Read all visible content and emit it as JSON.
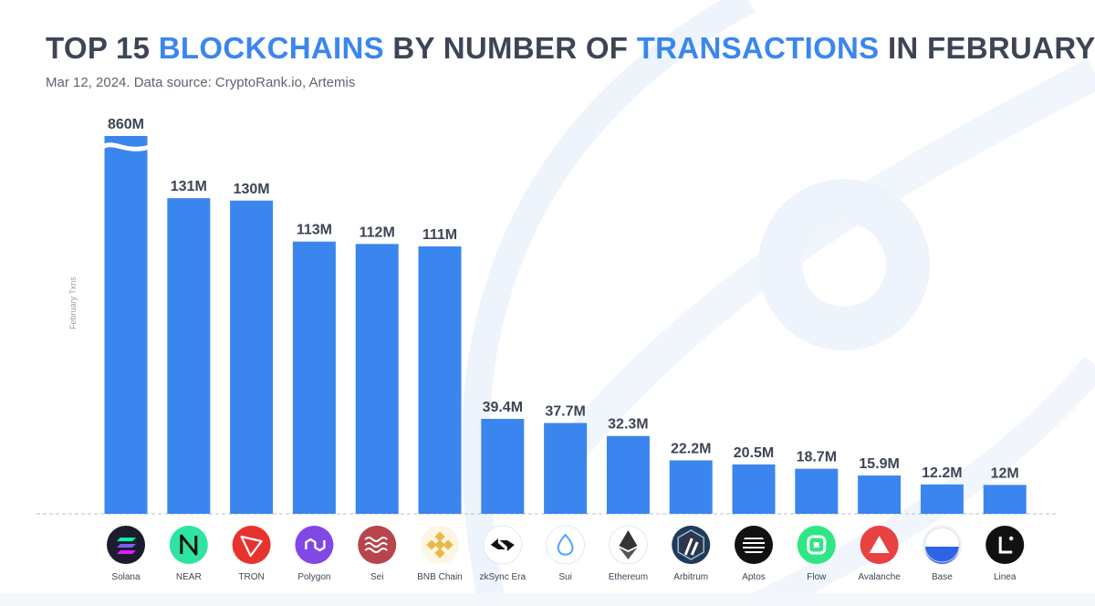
{
  "header": {
    "title_parts": [
      "TOP 15 ",
      "BLOCKCHAINS",
      " BY NUMBER OF ",
      "TRANSACTIONS",
      " IN FEBRUARY"
    ],
    "subtitle": "Mar 12, 2024. Data source: CryptoRank.io, Artemis"
  },
  "colors": {
    "bar": "#3b86ee",
    "title_highlight": "#3b86ee",
    "text": "#3d4555"
  },
  "chart_data": {
    "type": "bar",
    "title": "TOP 15 BLOCKCHAINS BY NUMBER OF TRANSACTIONS IN FEBRUARY",
    "xlabel": "",
    "ylabel": "February Txns",
    "unit": "M",
    "axis_break": "Solana",
    "grid": false,
    "legend": "none",
    "categories": [
      "Solana",
      "NEAR",
      "TRON",
      "Polygon",
      "Sei",
      "BNB Chain",
      "zkSync Era",
      "Sui",
      "Ethereum",
      "Arbitrum",
      "Aptos",
      "Flow",
      "Avalanche",
      "Base",
      "Linea"
    ],
    "values": [
      860,
      131,
      130,
      113,
      112,
      111,
      39.4,
      37.7,
      32.3,
      22.2,
      20.5,
      18.7,
      15.9,
      12.2,
      12
    ],
    "value_labels": [
      "860M",
      "131M",
      "130M",
      "113M",
      "112M",
      "111M",
      "39.4M",
      "37.7M",
      "32.3M",
      "22.2M",
      "20.5M",
      "18.7M",
      "15.9M",
      "12.2M",
      "12M"
    ],
    "icons": [
      "solana-icon",
      "near-icon",
      "tron-icon",
      "polygon-icon",
      "sei-icon",
      "bnb-chain-icon",
      "zksync-era-icon",
      "sui-icon",
      "ethereum-icon",
      "arbitrum-icon",
      "aptos-icon",
      "flow-icon",
      "avalanche-icon",
      "base-icon",
      "linea-icon"
    ],
    "icon_colors": [
      "#1c1c2e",
      "#2fe3a0",
      "#e8322e",
      "#8247e5",
      "#b8454c",
      "#e9b94c",
      "#ffffff",
      "#ffffff",
      "#ffffff",
      "#203a58",
      "#111111",
      "#2ee685",
      "#e84142",
      "#ffffff",
      "#111111"
    ]
  }
}
